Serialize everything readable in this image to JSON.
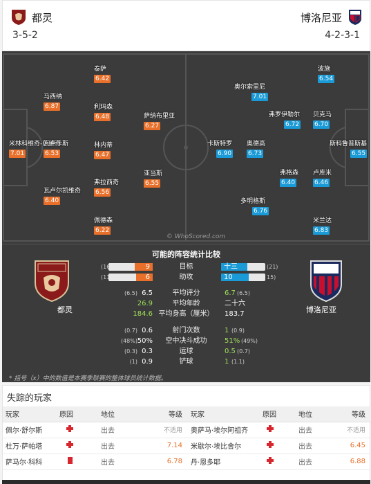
{
  "header": {
    "home_team": "都灵",
    "away_team": "博洛尼亚",
    "home_formation": "3-5-2",
    "away_formation": "4-2-3-1"
  },
  "pitch": {
    "watermark": "© WhoScored.com",
    "home_players": [
      {
        "name": "米林科维奇-萨维奇",
        "rating": "7.01"
      },
      {
        "name": "瓦卢卡斯",
        "rating": "6.53"
      },
      {
        "name": "马西纳",
        "rating": "6.87"
      },
      {
        "name": "瓦卢尔凯维奇",
        "rating": "6.40"
      },
      {
        "name": "泰萨",
        "rating": "6.42"
      },
      {
        "name": "利玛森",
        "rating": "6.48"
      },
      {
        "name": "林内蒂",
        "rating": "6.47"
      },
      {
        "name": "弗拉西奇",
        "rating": "6.56"
      },
      {
        "name": "佩德森",
        "rating": "6.22"
      },
      {
        "name": "萨纳布里亚",
        "rating": "6.27"
      },
      {
        "name": "亚当斯",
        "rating": "6.55"
      }
    ],
    "away_players": [
      {
        "name": "斯科鲁普斯基",
        "rating": "6.55"
      },
      {
        "name": "波施",
        "rating": "6.54"
      },
      {
        "name": "贝克马",
        "rating": "6.70"
      },
      {
        "name": "卢库米",
        "rating": "6.46"
      },
      {
        "name": "米兰达",
        "rating": "6.83"
      },
      {
        "name": "奥德高",
        "rating": "6.73"
      },
      {
        "name": "弗格森",
        "rating": "6.40"
      },
      {
        "name": "奥尔索里尼",
        "rating": "7.01"
      },
      {
        "name": "弗罗伊勒尔",
        "rating": "6.72"
      },
      {
        "name": "多明格斯",
        "rating": "6.76"
      },
      {
        "name": "卡斯特罗",
        "rating": "6.90"
      }
    ]
  },
  "compare": {
    "title": "可能的阵容统计比较",
    "home_label": "都灵",
    "away_label": "博洛尼亚",
    "bars": [
      {
        "label": "目标",
        "home_val": "9",
        "home_paren": "(16",
        "away_val": "十三",
        "away_paren": "(21)",
        "home_frac": 0.41,
        "away_frac": 0.59
      },
      {
        "label": "助攻",
        "home_val": "6",
        "home_paren": "(11",
        "away_val": "10",
        "away_paren": "15)",
        "home_frac": 0.38,
        "away_frac": 0.62
      }
    ],
    "stats": [
      {
        "label": "平均评分",
        "home_paren": "(6.5)",
        "home_val": "6.5",
        "away_val": "6.7",
        "away_paren": "(6.5)",
        "win": "away"
      },
      {
        "label": "平均年龄",
        "home_paren": "",
        "home_val": "26.9",
        "away_val": "二十六",
        "away_paren": "",
        "win": "home"
      },
      {
        "label": "平均身高（厘米）",
        "home_paren": "",
        "home_val": "184.6",
        "away_val": "183.7",
        "away_paren": "",
        "win": "home"
      },
      {
        "label": "射门次数",
        "home_paren": "(0.7)",
        "home_val": "0.6",
        "away_val": "1",
        "away_paren": "(0.9)",
        "win": "away"
      },
      {
        "label": "空中决斗成功",
        "home_paren": "(48%)",
        "home_val": "50%",
        "away_val": "51%",
        "away_paren": "(49%)",
        "win": "away"
      },
      {
        "label": "运球",
        "home_paren": "(0.3)",
        "home_val": "0.3",
        "away_val": "0.5",
        "away_paren": "(0.7)",
        "win": "away"
      },
      {
        "label": "铲球",
        "home_paren": "(1)",
        "home_val": "0.9",
        "away_val": "1",
        "away_paren": "(1.1)",
        "win": "away"
      }
    ],
    "footnote": "* 括号（x）中的数值是本赛季联赛的整体球员统计数据。"
  },
  "missing": {
    "title": "失踪的玩家",
    "headers": [
      "玩家",
      "原因",
      "地位",
      "等级",
      "玩家",
      "原因",
      "地位",
      "等级"
    ],
    "rows": [
      {
        "h_name": "佩尔·舒尔斯",
        "h_reason": "injury",
        "h_status": "出去",
        "h_rating": "不适用",
        "a_name": "奥萨马·埃尔阿祖齐",
        "a_reason": "injury",
        "a_status": "出去",
        "a_rating": "不适用"
      },
      {
        "h_name": "杜万·萨帕塔",
        "h_reason": "injury",
        "h_status": "出去",
        "h_rating": "7.14",
        "a_name": "米歇尔·埃比舍尔",
        "a_reason": "injury",
        "a_status": "出去",
        "a_rating": "6.45"
      },
      {
        "h_name": "萨马尔·科科",
        "h_reason": "card",
        "h_status": "出去",
        "h_rating": "6.78",
        "a_name": "丹·恩多耶",
        "a_reason": "injury",
        "a_status": "出去",
        "a_rating": "6.88"
      }
    ]
  },
  "colors": {
    "home": "#e8702a",
    "away": "#1a9ad6",
    "win": "#9fe05a",
    "pitch": "#3b3b3b"
  }
}
